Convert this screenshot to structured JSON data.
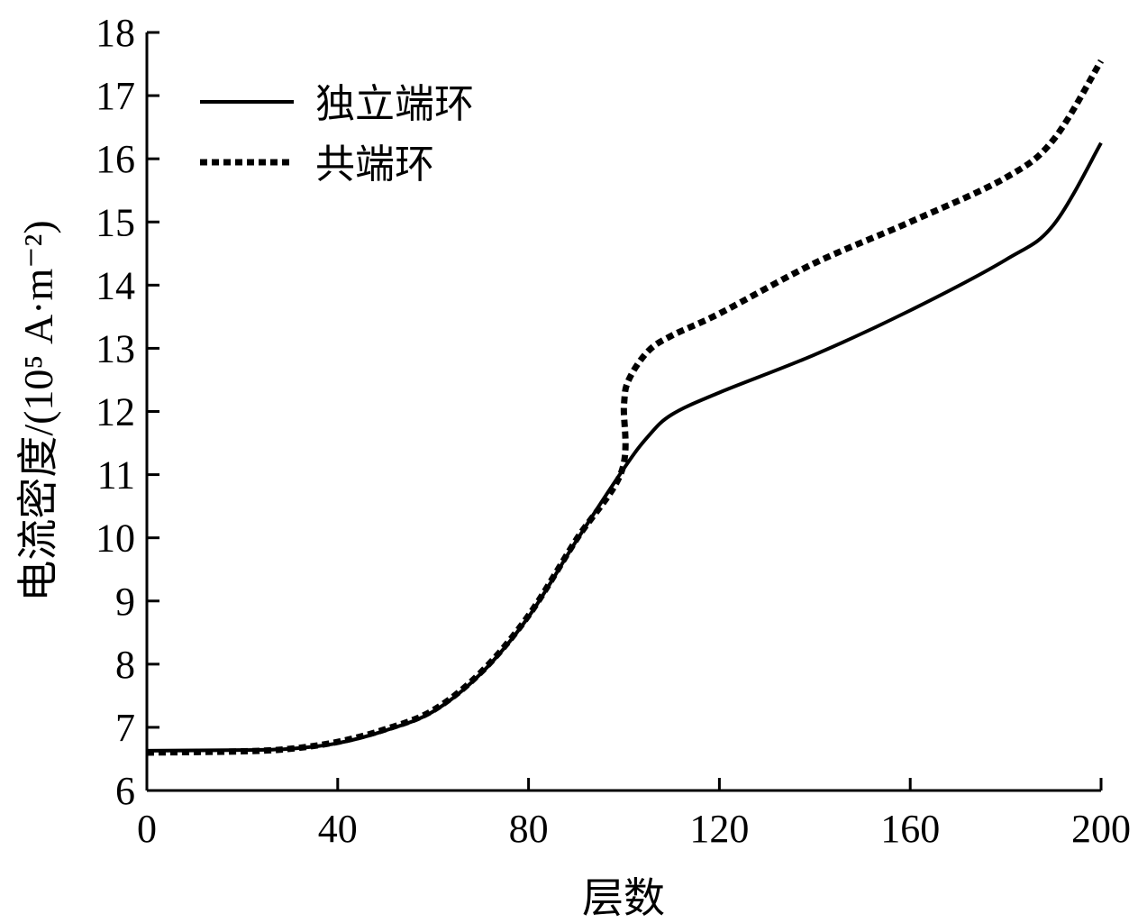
{
  "chart_data": {
    "type": "line",
    "title": "",
    "xlabel": "层数",
    "ylabel": "电流密度/(10⁵ A·m⁻²)",
    "xlim": [
      0,
      200
    ],
    "ylim": [
      6,
      18
    ],
    "x_ticks": [
      "0",
      "40",
      "80",
      "120",
      "160",
      "200"
    ],
    "y_ticks": [
      "6",
      "7",
      "8",
      "9",
      "10",
      "11",
      "12",
      "13",
      "14",
      "15",
      "16",
      "17",
      "18"
    ],
    "grid": false,
    "legend_position": "top-left",
    "series": [
      {
        "name": "独立端环",
        "style": "solid",
        "color": "#000000",
        "x": [
          0,
          20,
          30,
          40,
          50,
          60,
          70,
          80,
          90,
          100,
          105,
          110,
          120,
          140,
          160,
          180,
          190,
          200
        ],
        "y": [
          6.63,
          6.64,
          6.66,
          6.75,
          6.95,
          7.25,
          7.85,
          8.75,
          9.95,
          11.1,
          11.6,
          11.95,
          12.3,
          12.9,
          13.6,
          14.4,
          14.95,
          16.25
        ]
      },
      {
        "name": "共端环",
        "style": "dotted",
        "color": "#000000",
        "x": [
          0,
          20,
          30,
          40,
          50,
          60,
          70,
          80,
          90,
          99.5,
          100,
          101,
          105,
          110,
          120,
          140,
          160,
          180,
          190,
          200
        ],
        "y": [
          6.6,
          6.62,
          6.66,
          6.77,
          6.97,
          7.27,
          7.87,
          8.77,
          9.97,
          11.05,
          12.1,
          12.5,
          12.95,
          13.2,
          13.55,
          14.35,
          15.0,
          15.7,
          16.3,
          17.55
        ]
      }
    ]
  }
}
